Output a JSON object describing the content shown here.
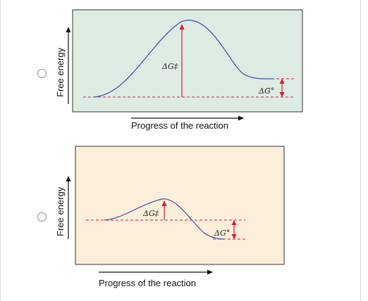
{
  "choices": [
    {
      "id": "A",
      "selected": false,
      "panel_color": "#deebe3",
      "y_axis_label": "Free energy",
      "x_axis_label": "Progress of the reaction",
      "activation_label": "ΔG‡",
      "standard_label": "ΔG°"
    },
    {
      "id": "B",
      "selected": false,
      "panel_color": "#fcefd9",
      "y_axis_label": "Free energy",
      "x_axis_label": "Progress of the reaction",
      "activation_label": "ΔG‡",
      "standard_label": "ΔG°"
    }
  ],
  "colors": {
    "curve": "#3b4fa3",
    "arrow": "#d7193f",
    "dashed": "#d7193f",
    "axis": "#111111",
    "panel_border": "#333333"
  }
}
